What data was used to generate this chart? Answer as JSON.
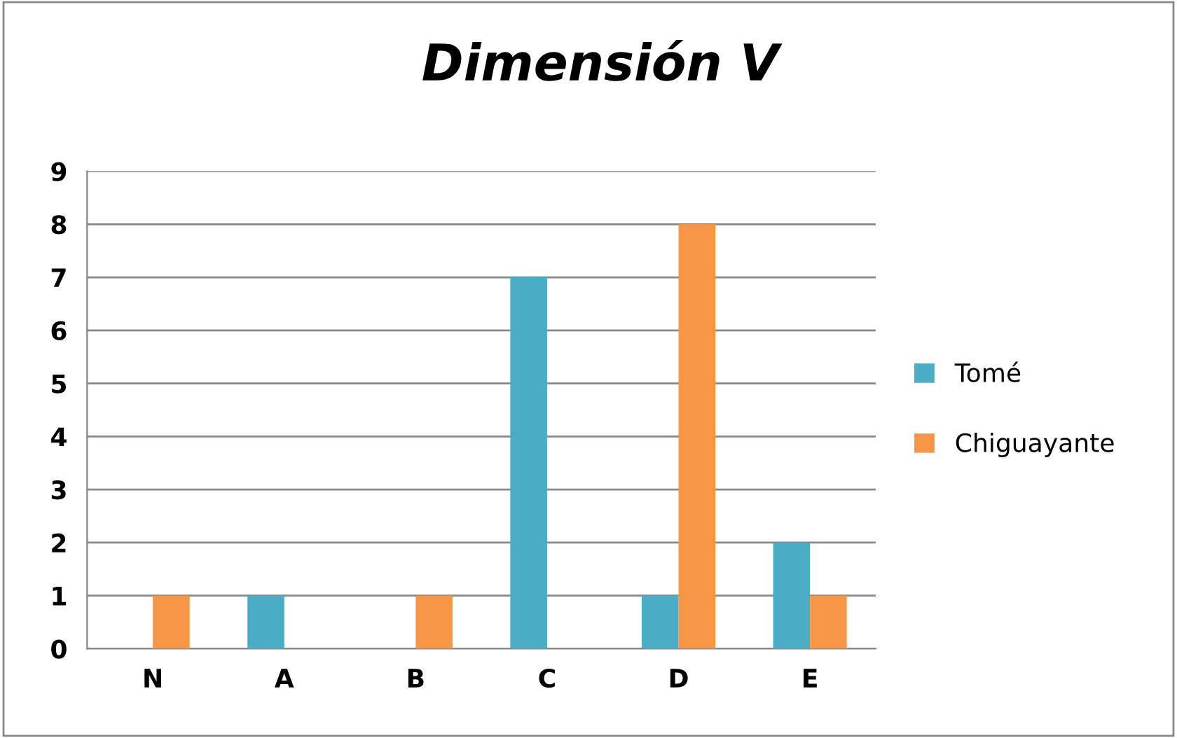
{
  "chart_data": {
    "type": "bar",
    "title": "Dimensión V",
    "categories": [
      "N",
      "A",
      "B",
      "C",
      "D",
      "E"
    ],
    "series": [
      {
        "name": "Tomé",
        "color": "#4bacc6",
        "values": [
          0,
          1,
          0,
          7,
          1,
          2
        ]
      },
      {
        "name": "Chiguayante",
        "color": "#f79646",
        "values": [
          1,
          0,
          1,
          0,
          8,
          1
        ]
      }
    ],
    "ylim": [
      0,
      9
    ],
    "yticks": [
      0,
      1,
      2,
      3,
      4,
      5,
      6,
      7,
      8,
      9
    ],
    "grid": "y",
    "legend": "right"
  }
}
